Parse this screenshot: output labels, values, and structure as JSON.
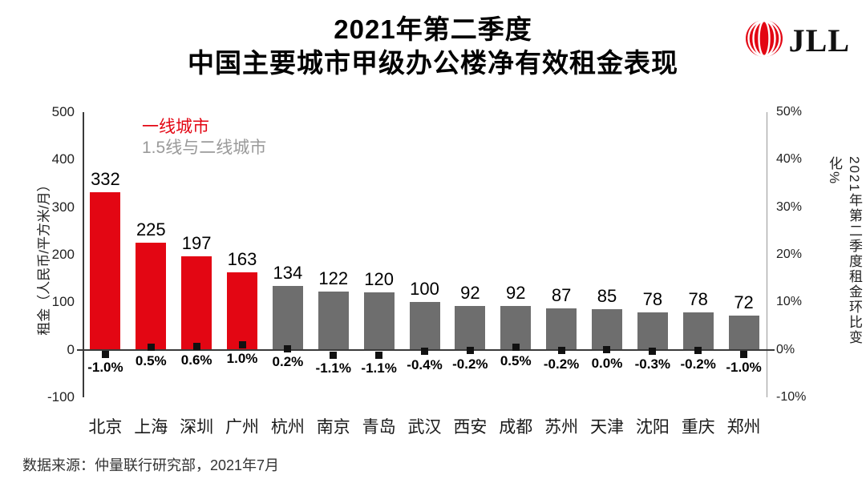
{
  "header": {
    "title_line1": "2021年第二季度",
    "title_line2": "中国主要城市甲级办公楼净有效租金表现",
    "logo_text": "JLL"
  },
  "colors": {
    "bar_primary": "#e30613",
    "bar_secondary": "#6e6e6e",
    "legend_primary_text": "#e30613",
    "legend_secondary_text": "#9a9a9a",
    "marker": "#111111",
    "axis_line": "#3a3a3a",
    "right_axis_line": "#999999",
    "logo_red": "#e30613"
  },
  "footer": {
    "source": "数据来源：仲量联行研究部，2021年7月"
  },
  "chart_data": {
    "type": "bar",
    "title": "2021年第二季度 中国主要城市甲级办公楼净有效租金表现",
    "categories": [
      "北京",
      "上海",
      "深圳",
      "广州",
      "杭州",
      "南京",
      "青岛",
      "武汉",
      "西安",
      "成都",
      "苏州",
      "天津",
      "沈阳",
      "重庆",
      "郑州"
    ],
    "series": [
      {
        "name": "租金（人民币/平方米/月）",
        "type": "bar",
        "axis": "left",
        "values": [
          332,
          225,
          197,
          163,
          134,
          122,
          120,
          100,
          92,
          92,
          87,
          85,
          78,
          78,
          72
        ]
      },
      {
        "name": "2021年第二季度租金环比变化%",
        "type": "scatter",
        "axis": "right",
        "values": [
          -1.0,
          0.5,
          0.6,
          1.0,
          0.2,
          -1.1,
          -1.1,
          -0.4,
          -0.2,
          0.5,
          -0.2,
          0.0,
          -0.3,
          -0.2,
          -1.0
        ],
        "labels": [
          "-1.0%",
          "0.5%",
          "0.6%",
          "1.0%",
          "0.2%",
          "-1.1%",
          "-1.1%",
          "-0.4%",
          "-0.2%",
          "0.5%",
          "-0.2%",
          "0.0%",
          "-0.3%",
          "-0.2%",
          "-1.0%"
        ]
      }
    ],
    "groups": [
      {
        "name": "一线城市",
        "color": "#e30613",
        "start_index": 0,
        "end_index": 3
      },
      {
        "name": "1.5线与二线城市",
        "color": "#6e6e6e",
        "start_index": 4,
        "end_index": 14
      }
    ],
    "left_axis": {
      "label": "租金（人民币/平方米/月）",
      "min": -100,
      "max": 500,
      "ticks": [
        "500",
        "400",
        "300",
        "200",
        "100",
        "0",
        "-100"
      ]
    },
    "right_axis": {
      "label": "2021年第二季度租金环比变化%",
      "min": -10,
      "max": 50,
      "ticks": [
        "50%",
        "40%",
        "30%",
        "20%",
        "10%",
        "0%",
        "-10%"
      ]
    },
    "grid": false,
    "legend_position": "top-left"
  }
}
